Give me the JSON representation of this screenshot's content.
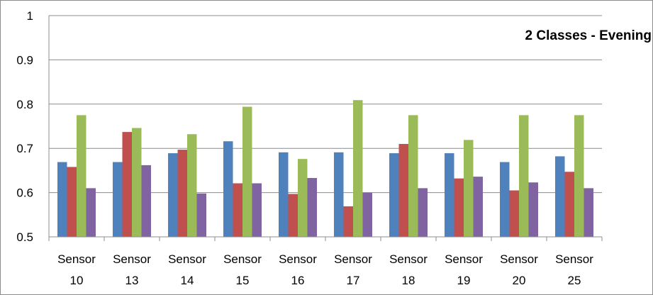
{
  "chart_data": {
    "type": "bar",
    "title": "2 Classes - Evening",
    "xlabel": "",
    "ylabel": "",
    "ylim": [
      0.5,
      1
    ],
    "yticks": [
      "0.5",
      "0.6",
      "0.7",
      "0.8",
      "0.9",
      "1"
    ],
    "grid": true,
    "categories": [
      [
        "Sensor",
        "10"
      ],
      [
        "Sensor",
        "13"
      ],
      [
        "Sensor",
        "14"
      ],
      [
        "Sensor",
        "15"
      ],
      [
        "Sensor",
        "16"
      ],
      [
        "Sensor",
        "17"
      ],
      [
        "Sensor",
        "18"
      ],
      [
        "Sensor",
        "19"
      ],
      [
        "Sensor",
        "20"
      ],
      [
        "Sensor",
        "25"
      ]
    ],
    "series": [
      {
        "color": "#4f81bd",
        "values": [
          0.669,
          0.669,
          0.689,
          0.716,
          0.691,
          0.691,
          0.689,
          0.689,
          0.669,
          0.682
        ]
      },
      {
        "color": "#c0504d",
        "values": [
          0.658,
          0.737,
          0.697,
          0.621,
          0.597,
          0.569,
          0.71,
          0.632,
          0.605,
          0.647
        ]
      },
      {
        "color": "#9bbb59",
        "values": [
          0.775,
          0.746,
          0.732,
          0.794,
          0.676,
          0.809,
          0.775,
          0.719,
          0.775,
          0.775
        ]
      },
      {
        "color": "#8064a2",
        "values": [
          0.61,
          0.662,
          0.598,
          0.621,
          0.633,
          0.6,
          0.61,
          0.636,
          0.623,
          0.61
        ]
      }
    ]
  }
}
